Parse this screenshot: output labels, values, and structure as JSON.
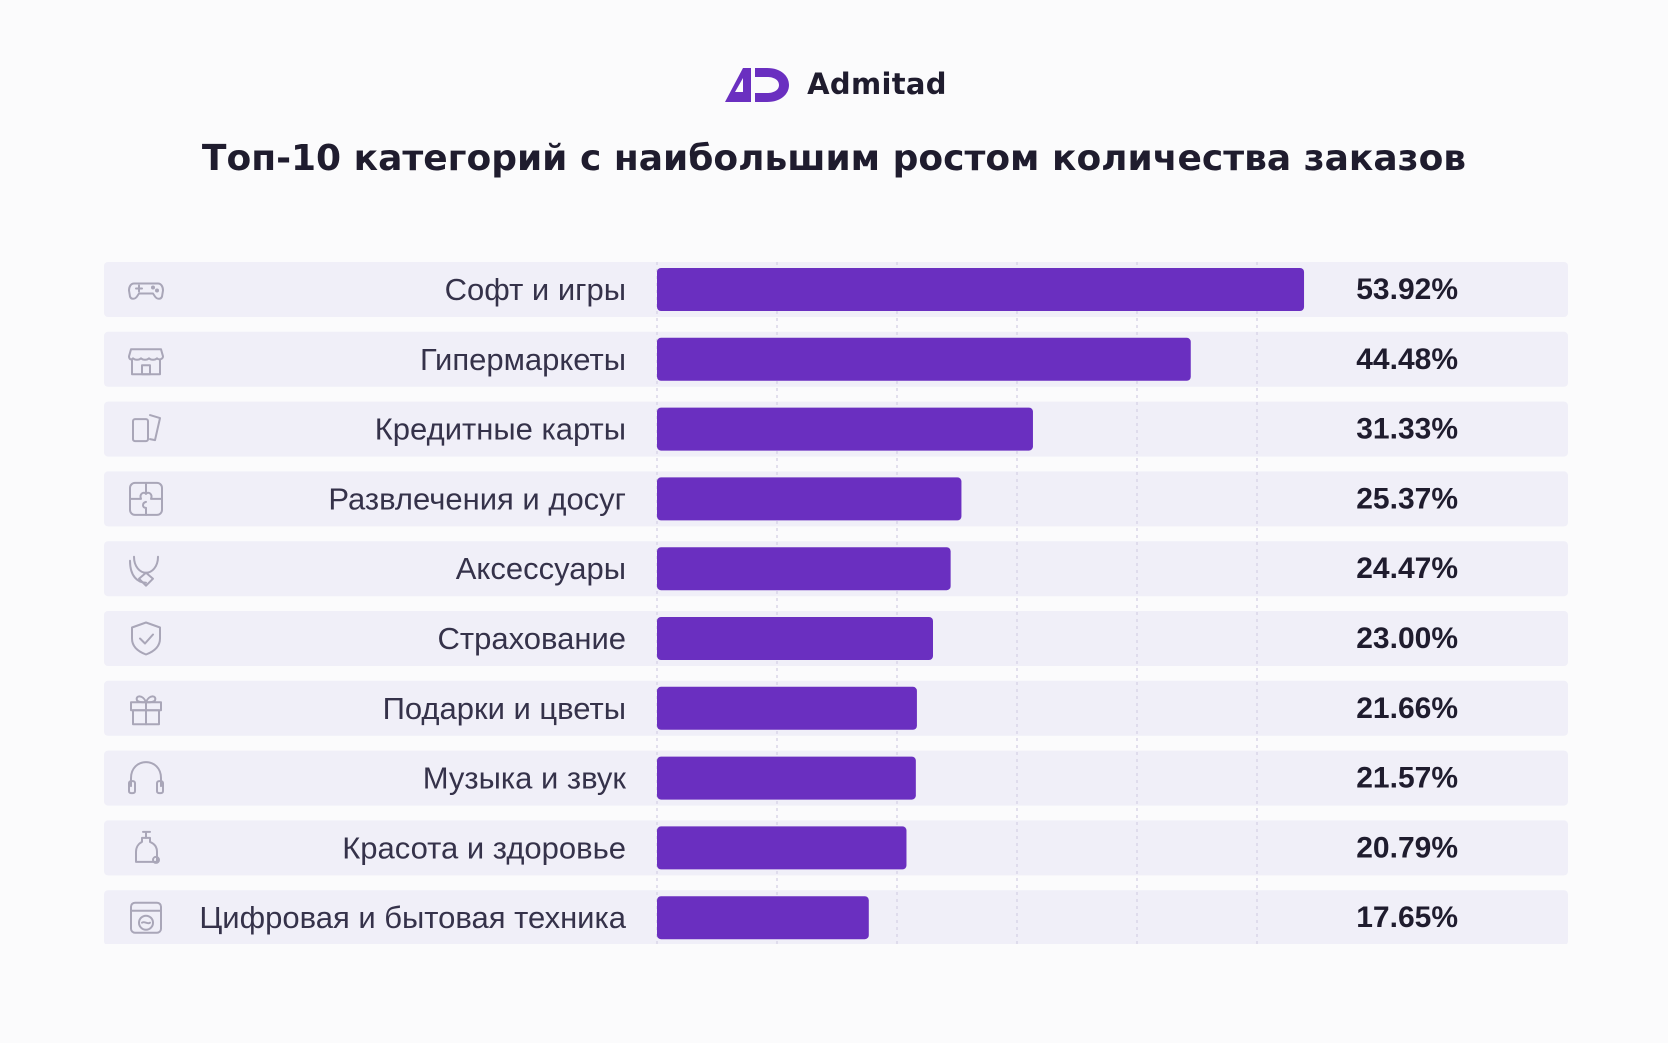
{
  "brand": {
    "name": "Admitad",
    "color": "#6a2fc0"
  },
  "chart_data": {
    "type": "bar",
    "orientation": "horizontal",
    "title": "Топ-10 категорий с наибольшим ростом количества заказов",
    "categories": [
      "Софт и игры",
      "Гипермаркеты",
      "Кредитные карты",
      "Развлечения и досуг",
      "Аксессуары",
      "Страхование",
      "Подарки и цветы",
      "Музыка и звук",
      "Красота и здоровье",
      "Цифровая и бытовая техника"
    ],
    "values": [
      53.92,
      44.48,
      31.33,
      25.37,
      24.47,
      23.0,
      21.66,
      21.57,
      20.79,
      17.65
    ],
    "value_labels": [
      "53.92%",
      "44.48%",
      "31.33%",
      "25.37%",
      "24.47%",
      "23.00%",
      "21.66%",
      "21.57%",
      "20.79%",
      "17.65%"
    ],
    "icons": [
      "gamepad-icon",
      "store-icon",
      "credit-cards-icon",
      "puzzle-icon",
      "necklace-icon",
      "shield-check-icon",
      "gift-icon",
      "headphones-icon",
      "soap-bottle-icon",
      "washing-machine-icon"
    ],
    "xlim": [
      0,
      60
    ],
    "grid": true,
    "bar_color": "#6a2fc0"
  }
}
